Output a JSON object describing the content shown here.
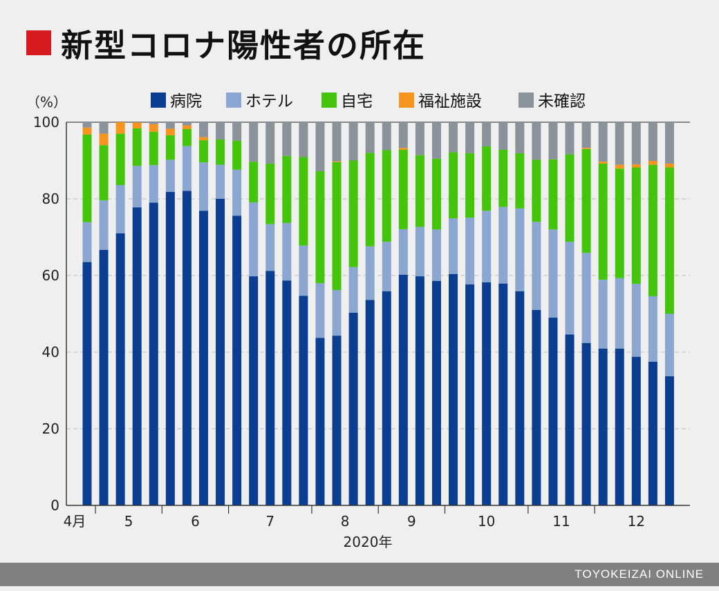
{
  "title": "新型コロナ陽性者の所在",
  "source": "TOYOKEIZAI ONLINE",
  "colors": {
    "title_mark": "#d71920",
    "hospital": "#0b3d91",
    "hotel": "#8aa6d1",
    "home": "#44c40b",
    "facility": "#f7941d",
    "unconfirmed": "#8a939b"
  },
  "chart_data": {
    "type": "bar",
    "stacked": true,
    "unit_label": "（%）",
    "ylim": [
      0,
      100
    ],
    "yticks": [
      0,
      20,
      40,
      60,
      80,
      100
    ],
    "grid": true,
    "legend_position": "top",
    "month_labels": [
      "4月",
      "5",
      "6",
      "7",
      "8",
      "9",
      "10",
      "11",
      "12"
    ],
    "month_groups": [
      [
        0,
        0
      ],
      [
        1,
        4
      ],
      [
        5,
        8
      ],
      [
        9,
        13
      ],
      [
        14,
        17
      ],
      [
        18,
        21
      ],
      [
        22,
        26
      ],
      [
        27,
        30
      ],
      [
        31,
        35
      ]
    ],
    "year_label": "2020年",
    "series": [
      {
        "name": "病院",
        "key": "hospital",
        "values": [
          63.5,
          66.7,
          71,
          77.8,
          79,
          81.8,
          82.1,
          76.9,
          80,
          75.6,
          59.8,
          61.2,
          58.7,
          54.7,
          43.7,
          44.3,
          50.3,
          53.6,
          55.9,
          60.2,
          59.8,
          58.6,
          60.4,
          57.7,
          58.2,
          57.9,
          55.9,
          51,
          49,
          44.6,
          42.4,
          40.9,
          40.9,
          38.8,
          37.5,
          33.7
        ]
      },
      {
        "name": "ホテル",
        "key": "hotel",
        "values": [
          10.4,
          12.9,
          12.6,
          10.8,
          9.8,
          8.4,
          11.7,
          12.6,
          8.9,
          12,
          19.3,
          12.2,
          15,
          13.1,
          14.3,
          11.9,
          11.9,
          14,
          12.9,
          11.9,
          12.9,
          13.4,
          14.5,
          17.4,
          18.7,
          20,
          21.6,
          23,
          23,
          24.2,
          23.5,
          18,
          18.4,
          19,
          17.1,
          16.3
        ]
      },
      {
        "name": "自宅",
        "key": "home",
        "values": [
          22.9,
          14.4,
          13.4,
          9.8,
          8.7,
          6.4,
          4.4,
          5.8,
          6.6,
          7.6,
          10.6,
          15.8,
          17.5,
          23.1,
          29.2,
          33.4,
          27.8,
          24.4,
          23.9,
          20.7,
          18.7,
          18.5,
          17.3,
          16.8,
          16.8,
          14.9,
          14.4,
          16.2,
          18.3,
          22.8,
          27.1,
          30.3,
          28.6,
          30.4,
          34.3,
          38.2
        ]
      },
      {
        "name": "福祉施設",
        "key": "facility",
        "values": [
          1.8,
          3,
          3,
          1.5,
          2,
          1.7,
          1,
          0.8,
          0,
          0,
          0,
          0,
          0,
          0,
          0,
          0.2,
          0,
          0,
          0,
          0.5,
          0,
          0,
          0,
          0,
          0,
          0,
          0,
          0,
          0,
          0,
          0.3,
          0.5,
          1,
          0.8,
          1,
          1
        ]
      },
      {
        "name": "未確認",
        "key": "unconfirmed",
        "values": [
          1.4,
          3,
          0,
          0.1,
          0.5,
          1.7,
          0.8,
          3.9,
          4.5,
          4.8,
          10.3,
          10.8,
          8.8,
          9.1,
          12.8,
          10.2,
          10,
          8,
          7.3,
          6.7,
          8.6,
          9.5,
          7.8,
          8.1,
          6.3,
          7.2,
          8.1,
          9.8,
          9.7,
          8.4,
          6.7,
          10.3,
          11.1,
          11,
          10.1,
          10.8
        ]
      }
    ]
  }
}
